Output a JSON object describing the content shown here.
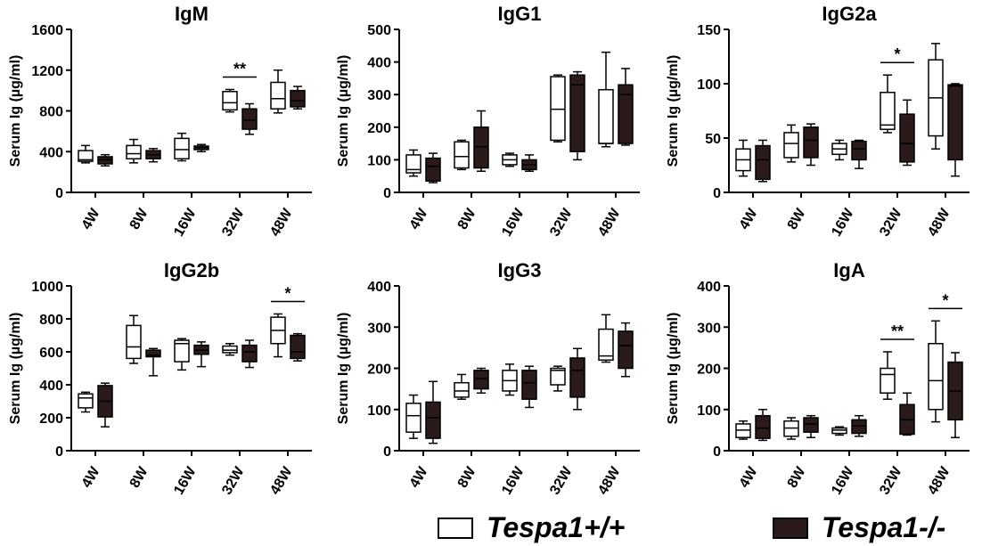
{
  "colors": {
    "wt_fill": "#ffffff",
    "ko_fill": "#2a1a1a",
    "stroke": "#000000"
  },
  "legend": {
    "items": [
      {
        "label": "Tespa1+/+",
        "key": "wt"
      },
      {
        "label": "Tespa1-/-",
        "key": "ko"
      }
    ]
  },
  "chart_data": [
    {
      "type": "box",
      "title": "IgM",
      "ylabel": "Serum Ig (µg/ml)",
      "ylim": [
        0,
        1600
      ],
      "yticks": [
        0,
        400,
        800,
        1200,
        1600
      ],
      "categories": [
        "4W",
        "8W",
        "16W",
        "32W",
        "48W"
      ],
      "series": [
        {
          "name": "Tespa1+/+",
          "key": "wt",
          "boxes": [
            {
              "min": 290,
              "q1": 305,
              "median": 320,
              "q3": 410,
              "max": 460
            },
            {
              "min": 290,
              "q1": 330,
              "median": 380,
              "q3": 460,
              "max": 520
            },
            {
              "min": 310,
              "q1": 330,
              "median": 420,
              "q3": 530,
              "max": 580
            },
            {
              "min": 790,
              "q1": 810,
              "median": 880,
              "q3": 990,
              "max": 1010
            },
            {
              "min": 780,
              "q1": 820,
              "median": 920,
              "q3": 1080,
              "max": 1200
            }
          ]
        },
        {
          "name": "Tespa1-/-",
          "key": "ko",
          "boxes": [
            {
              "min": 260,
              "q1": 280,
              "median": 320,
              "q3": 350,
              "max": 370
            },
            {
              "min": 300,
              "q1": 330,
              "median": 370,
              "q3": 410,
              "max": 430
            },
            {
              "min": 400,
              "q1": 420,
              "median": 440,
              "q3": 455,
              "max": 470
            },
            {
              "min": 570,
              "q1": 620,
              "median": 710,
              "q3": 820,
              "max": 870
            },
            {
              "min": 820,
              "q1": 840,
              "median": 900,
              "q3": 1000,
              "max": 1040
            }
          ]
        }
      ],
      "annotations": [
        {
          "category": "32W",
          "label": "**"
        }
      ]
    },
    {
      "type": "box",
      "title": "IgG1",
      "ylabel": "Serum Ig (µg/ml)",
      "ylim": [
        0,
        500
      ],
      "yticks": [
        0,
        100,
        200,
        300,
        400,
        500
      ],
      "categories": [
        "4W",
        "8W",
        "16W",
        "32W",
        "48W"
      ],
      "series": [
        {
          "name": "Tespa1+/+",
          "key": "wt",
          "boxes": [
            {
              "min": 50,
              "q1": 60,
              "median": 70,
              "q3": 115,
              "max": 130
            },
            {
              "min": 70,
              "q1": 75,
              "median": 110,
              "q3": 155,
              "max": 160
            },
            {
              "min": 80,
              "q1": 85,
              "median": 100,
              "q3": 115,
              "max": 120
            },
            {
              "min": 155,
              "q1": 160,
              "median": 255,
              "q3": 355,
              "max": 360
            },
            {
              "min": 140,
              "q1": 150,
              "median": 150,
              "q3": 315,
              "max": 430
            }
          ]
        },
        {
          "name": "Tespa1-/-",
          "key": "ko",
          "boxes": [
            {
              "min": 30,
              "q1": 35,
              "median": 80,
              "q3": 105,
              "max": 120
            },
            {
              "min": 65,
              "q1": 75,
              "median": 140,
              "q3": 200,
              "max": 250
            },
            {
              "min": 65,
              "q1": 70,
              "median": 85,
              "q3": 100,
              "max": 115
            },
            {
              "min": 100,
              "q1": 125,
              "median": 330,
              "q3": 360,
              "max": 370
            },
            {
              "min": 145,
              "q1": 150,
              "median": 300,
              "q3": 330,
              "max": 380
            }
          ]
        }
      ],
      "annotations": []
    },
    {
      "type": "box",
      "title": "IgG2a",
      "ylabel": "Serum Ig (µg/ml)",
      "ylim": [
        0,
        150
      ],
      "yticks": [
        0,
        50,
        100,
        150
      ],
      "categories": [
        "4W",
        "8W",
        "16W",
        "32W",
        "48W"
      ],
      "series": [
        {
          "name": "Tespa1+/+",
          "key": "wt",
          "boxes": [
            {
              "min": 15,
              "q1": 20,
              "median": 30,
              "q3": 40,
              "max": 48
            },
            {
              "min": 28,
              "q1": 32,
              "median": 45,
              "q3": 55,
              "max": 62
            },
            {
              "min": 30,
              "q1": 35,
              "median": 40,
              "q3": 45,
              "max": 48
            },
            {
              "min": 55,
              "q1": 58,
              "median": 62,
              "q3": 92,
              "max": 108
            },
            {
              "min": 40,
              "q1": 52,
              "median": 87,
              "q3": 122,
              "max": 137
            }
          ]
        },
        {
          "name": "Tespa1-/-",
          "key": "ko",
          "boxes": [
            {
              "min": 10,
              "q1": 12,
              "median": 30,
              "q3": 43,
              "max": 48
            },
            {
              "min": 25,
              "q1": 32,
              "median": 48,
              "q3": 60,
              "max": 63
            },
            {
              "min": 22,
              "q1": 30,
              "median": 40,
              "q3": 47,
              "max": 48
            },
            {
              "min": 25,
              "q1": 28,
              "median": 45,
              "q3": 72,
              "max": 85
            },
            {
              "min": 15,
              "q1": 30,
              "median": 98,
              "q3": 99,
              "max": 100
            }
          ]
        }
      ],
      "annotations": [
        {
          "category": "32W",
          "label": "*"
        }
      ]
    },
    {
      "type": "box",
      "title": "IgG2b",
      "ylabel": "Serum Ig (µg/ml)",
      "ylim": [
        0,
        1000
      ],
      "yticks": [
        0,
        200,
        400,
        600,
        800,
        1000
      ],
      "categories": [
        "4W",
        "8W",
        "16W",
        "32W",
        "48W"
      ],
      "series": [
        {
          "name": "Tespa1+/+",
          "key": "wt",
          "boxes": [
            {
              "min": 235,
              "q1": 260,
              "median": 320,
              "q3": 345,
              "max": 355
            },
            {
              "min": 530,
              "q1": 560,
              "median": 630,
              "q3": 760,
              "max": 820
            },
            {
              "min": 490,
              "q1": 540,
              "median": 650,
              "q3": 670,
              "max": 680
            },
            {
              "min": 580,
              "q1": 595,
              "median": 610,
              "q3": 635,
              "max": 650
            },
            {
              "min": 570,
              "q1": 650,
              "median": 730,
              "q3": 810,
              "max": 830
            }
          ]
        },
        {
          "name": "Tespa1-/-",
          "key": "ko",
          "boxes": [
            {
              "min": 145,
              "q1": 205,
              "median": 300,
              "q3": 395,
              "max": 410
            },
            {
              "min": 455,
              "q1": 570,
              "median": 580,
              "q3": 610,
              "max": 620
            },
            {
              "min": 510,
              "q1": 585,
              "median": 610,
              "q3": 640,
              "max": 660
            },
            {
              "min": 505,
              "q1": 540,
              "median": 600,
              "q3": 640,
              "max": 670
            },
            {
              "min": 545,
              "q1": 560,
              "median": 600,
              "q3": 700,
              "max": 710
            }
          ]
        }
      ],
      "annotations": [
        {
          "category": "48W",
          "label": "*"
        }
      ]
    },
    {
      "type": "box",
      "title": "IgG3",
      "ylabel": "Serum Ig (µg/ml)",
      "ylim": [
        0,
        400
      ],
      "yticks": [
        0,
        100,
        200,
        300,
        400
      ],
      "categories": [
        "4W",
        "8W",
        "16W",
        "32W",
        "48W"
      ],
      "series": [
        {
          "name": "Tespa1+/+",
          "key": "wt",
          "boxes": [
            {
              "min": 30,
              "q1": 45,
              "median": 85,
              "q3": 115,
              "max": 135
            },
            {
              "min": 125,
              "q1": 130,
              "median": 145,
              "q3": 165,
              "max": 185
            },
            {
              "min": 135,
              "q1": 145,
              "median": 170,
              "q3": 195,
              "max": 210
            },
            {
              "min": 145,
              "q1": 160,
              "median": 195,
              "q3": 200,
              "max": 205
            },
            {
              "min": 215,
              "q1": 220,
              "median": 230,
              "q3": 295,
              "max": 330
            }
          ]
        },
        {
          "name": "Tespa1-/-",
          "key": "ko",
          "boxes": [
            {
              "min": 18,
              "q1": 30,
              "median": 80,
              "q3": 118,
              "max": 168
            },
            {
              "min": 140,
              "q1": 150,
              "median": 175,
              "q3": 195,
              "max": 200
            },
            {
              "min": 105,
              "q1": 125,
              "median": 165,
              "q3": 195,
              "max": 205
            },
            {
              "min": 100,
              "q1": 130,
              "median": 195,
              "q3": 225,
              "max": 248
            },
            {
              "min": 180,
              "q1": 200,
              "median": 255,
              "q3": 290,
              "max": 310
            }
          ]
        }
      ],
      "annotations": []
    },
    {
      "type": "box",
      "title": "IgA",
      "ylabel": "Serum Ig (µg/ml)",
      "ylim": [
        0,
        400
      ],
      "yticks": [
        0,
        100,
        200,
        300,
        400
      ],
      "categories": [
        "4W",
        "8W",
        "16W",
        "32W",
        "48W"
      ],
      "series": [
        {
          "name": "Tespa1+/+",
          "key": "wt",
          "boxes": [
            {
              "min": 28,
              "q1": 32,
              "median": 50,
              "q3": 65,
              "max": 72
            },
            {
              "min": 28,
              "q1": 35,
              "median": 55,
              "q3": 72,
              "max": 80
            },
            {
              "min": 38,
              "q1": 42,
              "median": 50,
              "q3": 55,
              "max": 58
            },
            {
              "min": 125,
              "q1": 140,
              "median": 185,
              "q3": 200,
              "max": 240
            },
            {
              "min": 70,
              "q1": 100,
              "median": 170,
              "q3": 260,
              "max": 315
            }
          ]
        },
        {
          "name": "Tespa1-/-",
          "key": "ko",
          "boxes": [
            {
              "min": 25,
              "q1": 30,
              "median": 55,
              "q3": 85,
              "max": 100
            },
            {
              "min": 32,
              "q1": 45,
              "median": 65,
              "q3": 80,
              "max": 85
            },
            {
              "min": 35,
              "q1": 42,
              "median": 60,
              "q3": 75,
              "max": 85
            },
            {
              "min": 38,
              "q1": 40,
              "median": 75,
              "q3": 112,
              "max": 140
            },
            {
              "min": 32,
              "q1": 75,
              "median": 145,
              "q3": 215,
              "max": 238
            }
          ]
        }
      ],
      "annotations": [
        {
          "category": "32W",
          "label": "**"
        },
        {
          "category": "48W",
          "label": "*"
        }
      ]
    }
  ]
}
